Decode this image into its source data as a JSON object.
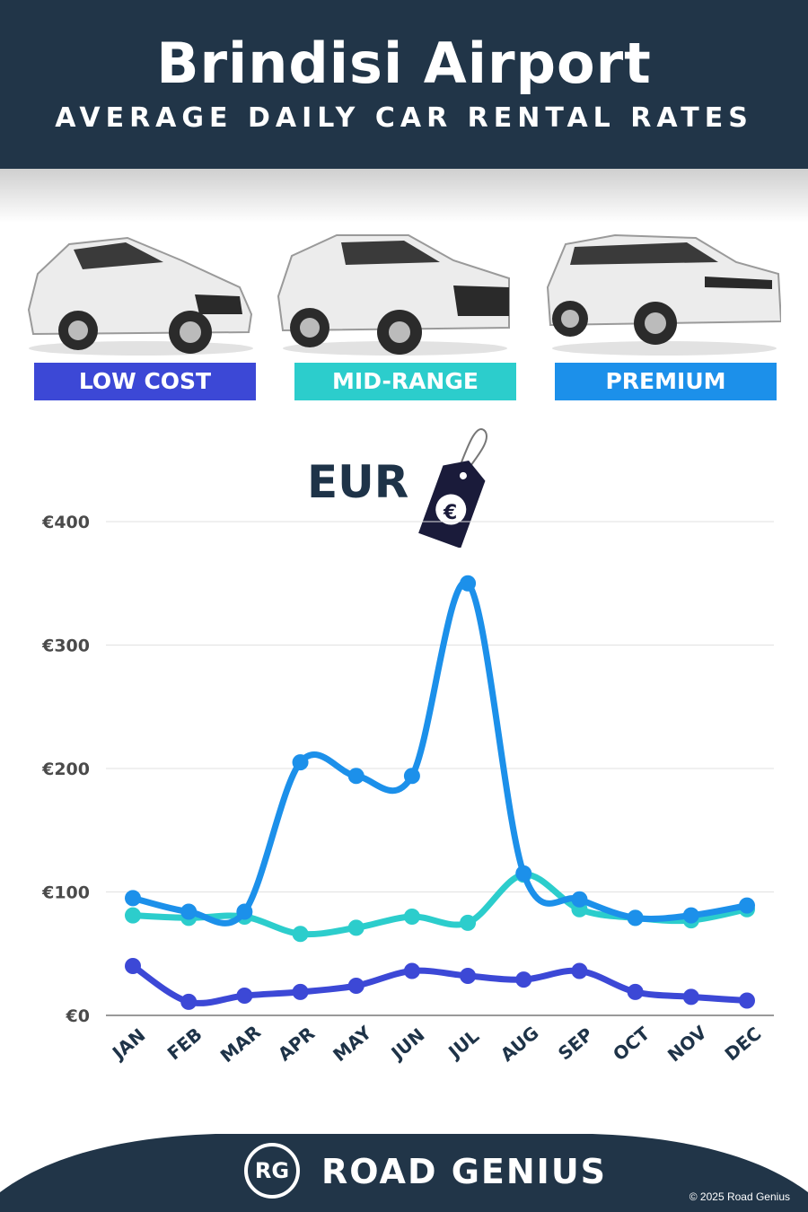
{
  "header": {
    "title": "Brindisi Airport",
    "subtitle": "AVERAGE DAILY CAR RENTAL RATES"
  },
  "categories": {
    "low": {
      "label": "LOW COST",
      "color": "#3c48d6"
    },
    "mid": {
      "label": "MID-RANGE",
      "color": "#2ccdcc"
    },
    "premium": {
      "label": "PREMIUM",
      "color": "#1c90ea"
    }
  },
  "currency": {
    "label": "EUR",
    "symbol": "€"
  },
  "chart_data": {
    "type": "line",
    "categories": [
      "JAN",
      "FEB",
      "MAR",
      "APR",
      "MAY",
      "JUN",
      "JUL",
      "AUG",
      "SEP",
      "OCT",
      "NOV",
      "DEC"
    ],
    "yticks": [
      "€0",
      "€100",
      "€200",
      "€300",
      "€400"
    ],
    "ylim": [
      0,
      400
    ],
    "grid": true,
    "series": [
      {
        "name": "LOW COST",
        "color": "#3c48d6",
        "values": [
          40,
          11,
          16,
          19,
          24,
          36,
          32,
          29,
          36,
          19,
          15,
          12
        ]
      },
      {
        "name": "MID-RANGE",
        "color": "#2ccdcc",
        "values": [
          81,
          79,
          80,
          66,
          71,
          80,
          75,
          114,
          86,
          79,
          77,
          86
        ]
      },
      {
        "name": "PREMIUM",
        "color": "#1c90ea",
        "values": [
          95,
          84,
          84,
          205,
          194,
          194,
          350,
          115,
          94,
          79,
          81,
          89
        ]
      }
    ]
  },
  "footer": {
    "logo": "RG",
    "brand": "ROAD GENIUS",
    "copyright": "© 2025 Road Genius"
  }
}
